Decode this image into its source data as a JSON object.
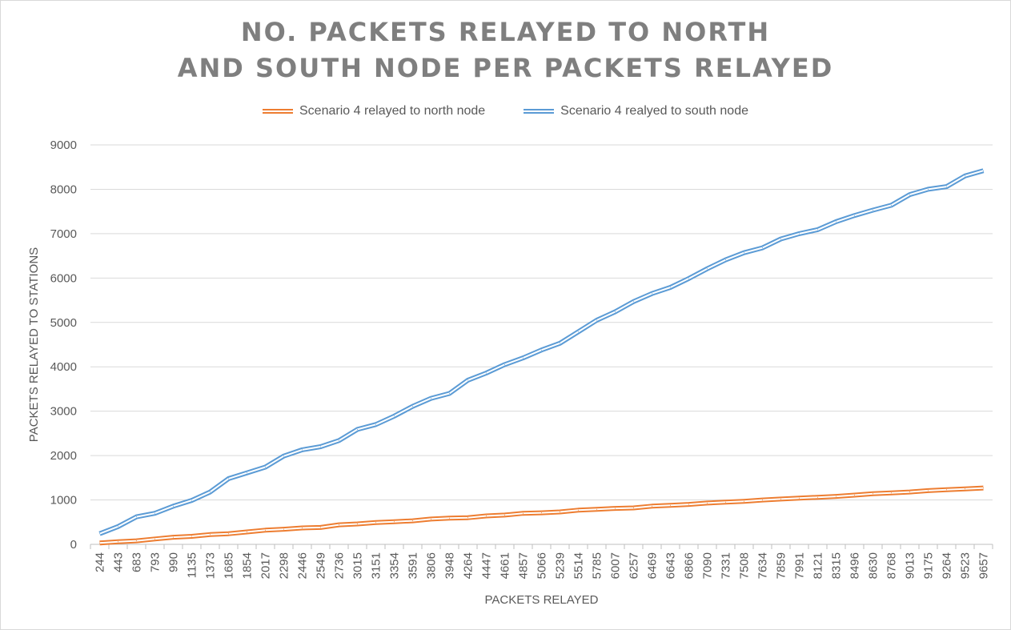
{
  "chart_data": {
    "type": "line",
    "title_lines": [
      "NO. PACKETS RELAYED TO NORTH",
      "AND SOUTH NODE PER  PACKETS RELAYED"
    ],
    "xlabel": "PACKETS  RELAYED",
    "ylabel": "PACKETS RELAYED TO STATIONS",
    "ylim": [
      0,
      9000
    ],
    "yticks": [
      0,
      1000,
      2000,
      3000,
      4000,
      5000,
      6000,
      7000,
      8000,
      9000
    ],
    "grid": "horizontal",
    "legend_position": "top",
    "categories": [
      "244",
      "443",
      "683",
      "793",
      "990",
      "1135",
      "1373",
      "1685",
      "1854",
      "2017",
      "2298",
      "2446",
      "2549",
      "2736",
      "3015",
      "3151",
      "3354",
      "3591",
      "3806",
      "3948",
      "4264",
      "4447",
      "4661",
      "4857",
      "5066",
      "5239",
      "5514",
      "5785",
      "6007",
      "6257",
      "6469",
      "6643",
      "6866",
      "7090",
      "7331",
      "7508",
      "7634",
      "7859",
      "7991",
      "8121",
      "8315",
      "8496",
      "8630",
      "8768",
      "9013",
      "9175",
      "9264",
      "9523",
      "9657"
    ],
    "series": [
      {
        "name": "Scenario 4 relayed to north node",
        "color": "#ed7d31",
        "values": [
          30,
          60,
          80,
          120,
          160,
          180,
          220,
          240,
          280,
          320,
          340,
          370,
          380,
          440,
          460,
          490,
          510,
          530,
          570,
          590,
          600,
          640,
          660,
          700,
          710,
          730,
          770,
          790,
          810,
          820,
          860,
          880,
          900,
          930,
          950,
          970,
          1000,
          1020,
          1040,
          1060,
          1080,
          1110,
          1140,
          1160,
          1180,
          1210,
          1230,
          1250,
          1270
        ]
      },
      {
        "name": "Scenario 4 realyed to south node",
        "color": "#5b9bd5",
        "values": [
          240,
          400,
          620,
          700,
          860,
          990,
          1180,
          1480,
          1610,
          1740,
          1990,
          2130,
          2200,
          2340,
          2590,
          2700,
          2890,
          3110,
          3290,
          3400,
          3700,
          3860,
          4050,
          4200,
          4380,
          4530,
          4790,
          5050,
          5240,
          5470,
          5650,
          5790,
          5990,
          6210,
          6410,
          6570,
          6680,
          6880,
          7000,
          7090,
          7270,
          7410,
          7530,
          7640,
          7880,
          8000,
          8060,
          8300,
          8420
        ]
      }
    ]
  }
}
